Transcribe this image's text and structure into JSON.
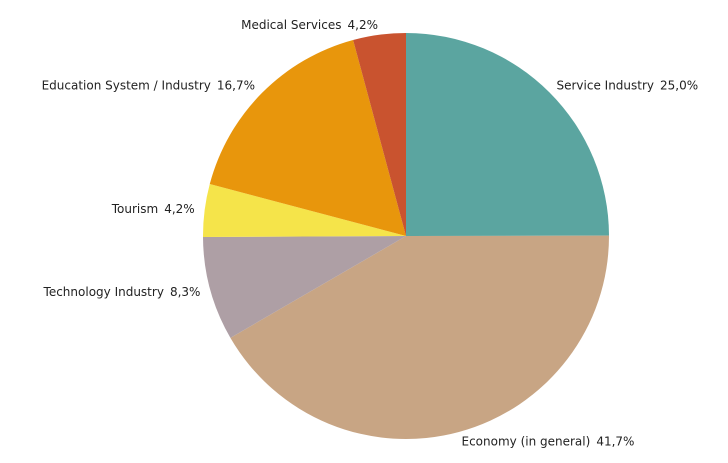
{
  "chart_data": {
    "type": "pie",
    "categories": [
      "Service Industry",
      "Economy (in general)",
      "Technology Industry",
      "Tourism",
      "Education System / Industry",
      "Medical Services"
    ],
    "values": [
      25.0,
      41.7,
      8.3,
      4.2,
      16.7,
      4.2
    ],
    "value_labels": [
      "25,0%",
      "41,7%",
      "8,3%",
      "4,2%",
      "16,7%",
      "4,2%"
    ],
    "colors": [
      "#5ba5a0",
      "#c8a584",
      "#ae9fa5",
      "#f5e44a",
      "#e8960c",
      "#c9532f"
    ]
  }
}
